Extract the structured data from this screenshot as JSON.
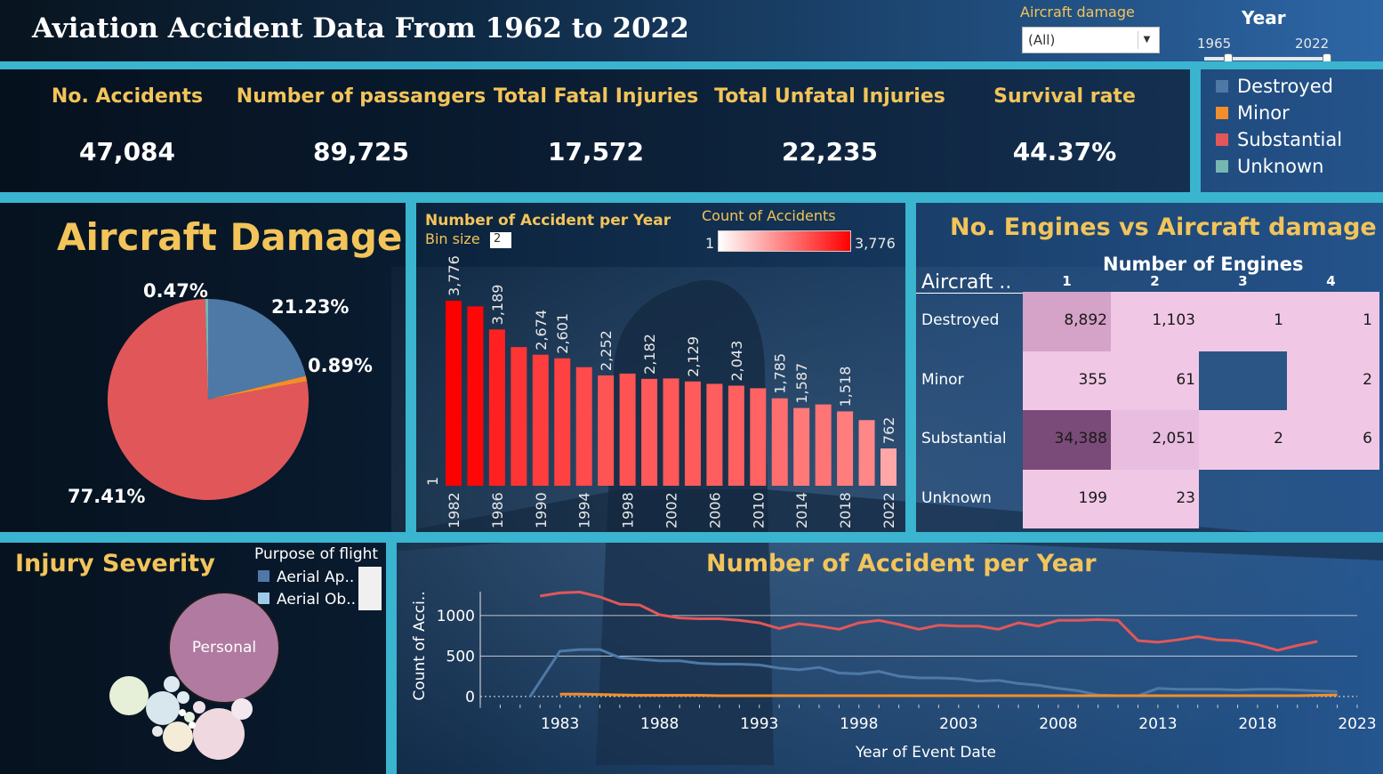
{
  "header": {
    "title": "Aviation Accident Data From 1962 to 2022",
    "damage_filter_label": "Aircraft damage",
    "damage_filter_value": "(All)",
    "year_label": "Year",
    "year_min": "1965",
    "year_max": "2022"
  },
  "kpis": [
    {
      "label": "No. Accidents",
      "value": "47,084"
    },
    {
      "label": "Number of passangers",
      "value": "89,725"
    },
    {
      "label": "Total Fatal Injuries",
      "value": "17,572"
    },
    {
      "label": "Total Unfatal Injuries",
      "value": "22,235"
    },
    {
      "label": "Survival rate",
      "value": "44.37%"
    }
  ],
  "legend": [
    {
      "label": "Destroyed",
      "color": "#4e79a7"
    },
    {
      "label": "Minor",
      "color": "#f28e2b"
    },
    {
      "label": "Substantial",
      "color": "#e15759"
    },
    {
      "label": "Unknown",
      "color": "#76b7b2"
    }
  ],
  "pie": {
    "title": "Aircraft Damage"
  },
  "bar": {
    "title": "Number of Accident per Year",
    "bin_label": "Bin size",
    "bin_value": "2",
    "color_legend_title": "Count of Accidents",
    "color_min": "1",
    "color_max": "3,776",
    "y_axis_min_label": "1"
  },
  "heatmap": {
    "title": "No. Engines vs Aircraft damage",
    "col_header": "Number of Engines",
    "row_header": "Aircraft ..",
    "cols": [
      "1",
      "2",
      "3",
      "4"
    ]
  },
  "bubble": {
    "title": "Injury Severity",
    "legend_title": "Purpose of flight",
    "legend_items": [
      "Aerial Ap..",
      "Aerial Ob.."
    ],
    "main_label": "Personal"
  },
  "line": {
    "title": "Number of Accident per Year",
    "xlabel": "Year of Event Date",
    "ylabel": "Count of Acci.."
  },
  "chart_data": [
    {
      "type": "pie",
      "title": "Aircraft Damage",
      "slices": [
        {
          "name": "Destroyed",
          "value": 21.23,
          "label": "21.23%",
          "color": "#4e79a7"
        },
        {
          "name": "Minor",
          "value": 0.89,
          "label": "0.89%",
          "color": "#f28e2b"
        },
        {
          "name": "Substantial",
          "value": 77.41,
          "label": "77.41%",
          "color": "#e15759"
        },
        {
          "name": "Unknown",
          "value": 0.47,
          "label": "0.47%",
          "color": "#76b7b2"
        }
      ]
    },
    {
      "type": "bar",
      "title": "Number of Accident per Year",
      "categories": [
        "1982",
        "1984",
        "1986",
        "1988",
        "1990",
        "1992",
        "1994",
        "1996",
        "1998",
        "2000",
        "2002",
        "2004",
        "2006",
        "2008",
        "2010",
        "2012",
        "2014",
        "2016",
        "2018",
        "2020",
        "2022"
      ],
      "values": [
        3776,
        3660,
        3189,
        2830,
        2674,
        2601,
        2420,
        2252,
        2290,
        2182,
        2190,
        2129,
        2080,
        2043,
        1990,
        1785,
        1587,
        1660,
        1518,
        1340,
        762
      ],
      "data_labels": {
        "1982": "3,776",
        "1986": "3,189",
        "1990": "2,674",
        "1992": "2,601",
        "1996": "2,252",
        "2000": "2,182",
        "2004": "2,129",
        "2008": "2,043",
        "2012": "1,785",
        "2014": "1,587",
        "2018": "1,518",
        "2022": "762"
      },
      "x_tick_labels": [
        "1982",
        "1986",
        "1990",
        "1994",
        "1998",
        "2002",
        "2006",
        "2010",
        "2014",
        "2018",
        "2022"
      ],
      "ylim": [
        1,
        3776
      ],
      "color_scale": {
        "min": 1,
        "max": 3776,
        "low": "#ffffff",
        "high": "#ff0000"
      }
    },
    {
      "type": "heatmap",
      "title": "No. Engines vs Aircraft damage",
      "rows": [
        "Destroyed",
        "Minor",
        "Substantial",
        "Unknown"
      ],
      "cols": [
        "1",
        "2",
        "3",
        "4"
      ],
      "values": [
        [
          "8,892",
          "1,103",
          "1",
          "1"
        ],
        [
          "355",
          "61",
          "",
          "2"
        ],
        [
          "34,388",
          "2,051",
          "2",
          "6"
        ],
        [
          "199",
          "23",
          "",
          ""
        ]
      ],
      "cell_colors": [
        [
          "#d5a2c8",
          "#f0c8e5",
          "#f0c8e5",
          "#f0c8e5"
        ],
        [
          "#f0c8e5",
          "#f0c8e5",
          "#2a5585",
          "#f0c8e5"
        ],
        [
          "#7a4a78",
          "#e8bde0",
          "#f0c8e5",
          "#f0c8e5"
        ],
        [
          "#f0c8e5",
          "#f0c8e5",
          "",
          ""
        ]
      ]
    },
    {
      "type": "line",
      "title": "Number of Accident per Year",
      "xlabel": "Year of Event Date",
      "ylabel": "Count of Acci..",
      "x": [
        1982,
        1983,
        1984,
        1985,
        1986,
        1987,
        1988,
        1989,
        1990,
        1991,
        1992,
        1993,
        1994,
        1995,
        1996,
        1997,
        1998,
        1999,
        2000,
        2001,
        2002,
        2003,
        2004,
        2005,
        2006,
        2007,
        2008,
        2009,
        2010,
        2011,
        2012,
        2013,
        2014,
        2015,
        2016,
        2017,
        2018,
        2019,
        2020,
        2021,
        2022
      ],
      "xticks": [
        1983,
        1988,
        1993,
        1998,
        2003,
        2008,
        2013,
        2018,
        2023
      ],
      "yticks": [
        0,
        500,
        1000
      ],
      "ylim": [
        -100,
        1350
      ],
      "xlim": [
        1979,
        2023
      ],
      "series": [
        {
          "name": "Substantial",
          "color": "#e15759",
          "values": [
            1240,
            1280,
            1290,
            1230,
            1140,
            1130,
            1010,
            970,
            960,
            960,
            940,
            910,
            840,
            900,
            870,
            830,
            910,
            940,
            890,
            830,
            880,
            870,
            870,
            830,
            910,
            870,
            940,
            940,
            950,
            940,
            690,
            670,
            700,
            740,
            700,
            690,
            640,
            570,
            630,
            680,
            null
          ]
        },
        {
          "name": "Destroyed",
          "color": "#4e79a7",
          "values": [
            null,
            560,
            580,
            580,
            480,
            460,
            440,
            440,
            410,
            400,
            400,
            390,
            350,
            330,
            360,
            290,
            280,
            310,
            250,
            230,
            230,
            220,
            190,
            200,
            160,
            140,
            100,
            70,
            20,
            10,
            10,
            100,
            90,
            90,
            90,
            80,
            90,
            90,
            80,
            70,
            60
          ]
        },
        {
          "name": "Minor",
          "color": "#f28e2b",
          "values": [
            null,
            30,
            30,
            25,
            20,
            15,
            15,
            15,
            15,
            10,
            10,
            10,
            10,
            10,
            10,
            10,
            10,
            10,
            10,
            10,
            10,
            10,
            10,
            10,
            10,
            10,
            10,
            10,
            10,
            10,
            10,
            10,
            10,
            10,
            10,
            10,
            10,
            10,
            10,
            15,
            20
          ]
        }
      ]
    }
  ]
}
